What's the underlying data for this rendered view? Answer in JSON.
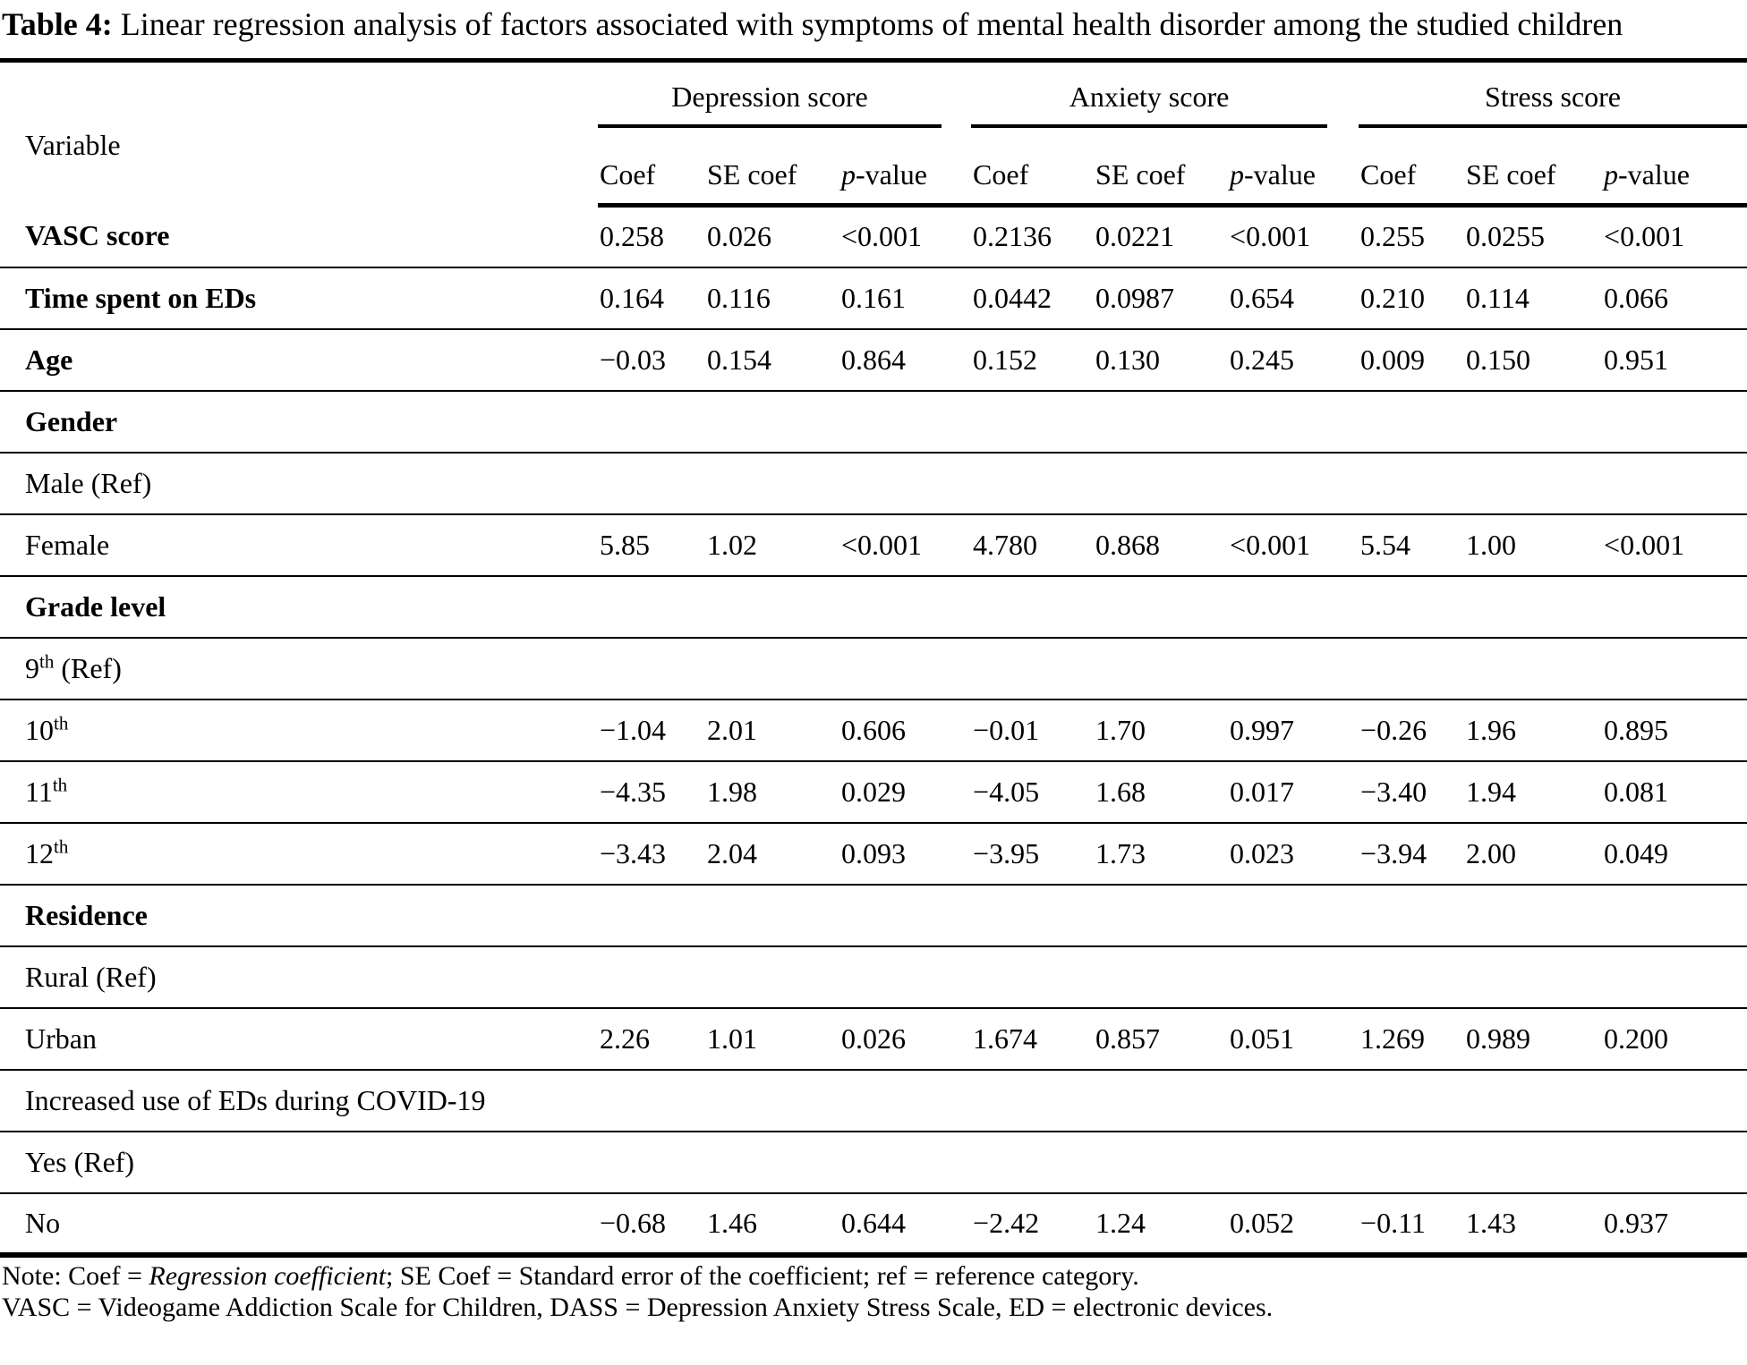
{
  "title": {
    "label": "Table 4:",
    "text": "Linear regression analysis of factors associated with symptoms of mental health disorder among the studied children"
  },
  "table": {
    "variable_header": "Variable",
    "groups": [
      {
        "label": "Depression score"
      },
      {
        "label": "Anxiety score"
      },
      {
        "label": "Stress score"
      }
    ],
    "subheaders": [
      "Coef",
      "SE coef",
      "*p*-value"
    ],
    "rows": [
      {
        "label": "VASC score",
        "bold": true,
        "values": [
          "0.258",
          "0.026",
          "<0.001",
          "0.2136",
          "0.0221",
          "<0.001",
          "0.255",
          "0.0255",
          "<0.001"
        ]
      },
      {
        "label": "Time spent on EDs",
        "bold": true,
        "values": [
          "0.164",
          "0.116",
          "0.161",
          "0.0442",
          "0.0987",
          "0.654",
          "0.210",
          "0.114",
          "0.066"
        ]
      },
      {
        "label": "Age",
        "bold": true,
        "values": [
          "−0.03",
          "0.154",
          "0.864",
          "0.152",
          "0.130",
          "0.245",
          "0.009",
          "0.150",
          "0.951"
        ]
      },
      {
        "label": "Gender",
        "bold": true,
        "values": []
      },
      {
        "label": "Male (Ref)",
        "bold": false,
        "values": []
      },
      {
        "label": "Female",
        "bold": false,
        "values": [
          "5.85",
          "1.02",
          "<0.001",
          "4.780",
          "0.868",
          "<0.001",
          "5.54",
          "1.00",
          "<0.001"
        ]
      },
      {
        "label": "Grade level",
        "bold": true,
        "values": []
      },
      {
        "label": "9^th^ (Ref)",
        "bold": false,
        "values": []
      },
      {
        "label": "10^th^",
        "bold": false,
        "values": [
          "−1.04",
          "2.01",
          "0.606",
          "−0.01",
          "1.70",
          "0.997",
          "−0.26",
          "1.96",
          "0.895"
        ]
      },
      {
        "label": "11^th^",
        "bold": false,
        "values": [
          "−4.35",
          "1.98",
          "0.029",
          "−4.05",
          "1.68",
          "0.017",
          "−3.40",
          "1.94",
          "0.081"
        ]
      },
      {
        "label": "12^th^",
        "bold": false,
        "values": [
          "−3.43",
          "2.04",
          "0.093",
          "−3.95",
          "1.73",
          "0.023",
          "−3.94",
          "2.00",
          "0.049"
        ]
      },
      {
        "label": "Residence",
        "bold": true,
        "values": []
      },
      {
        "label": "Rural (Ref)",
        "bold": false,
        "values": []
      },
      {
        "label": "Urban",
        "bold": false,
        "values": [
          "2.26",
          "1.01",
          "0.026",
          "1.674",
          "0.857",
          "0.051",
          "1.269",
          "0.989",
          "0.200"
        ]
      },
      {
        "label": "Increased use of EDs during COVID-19",
        "bold": false,
        "values": []
      },
      {
        "label": "Yes (Ref)",
        "bold": false,
        "values": []
      },
      {
        "label": "No",
        "bold": false,
        "values": [
          "−0.68",
          "1.46",
          "0.644",
          "−2.42",
          "1.24",
          "0.052",
          "−0.11",
          "1.43",
          "0.937"
        ]
      }
    ]
  },
  "notes": [
    "Note: Coef = *Regression coefficient*; SE Coef = Standard error of the coefficient; ref = reference category.",
    "VASC = Videogame Addiction Scale for Children, DASS = Depression Anxiety Stress Scale, ED = electronic devices."
  ]
}
